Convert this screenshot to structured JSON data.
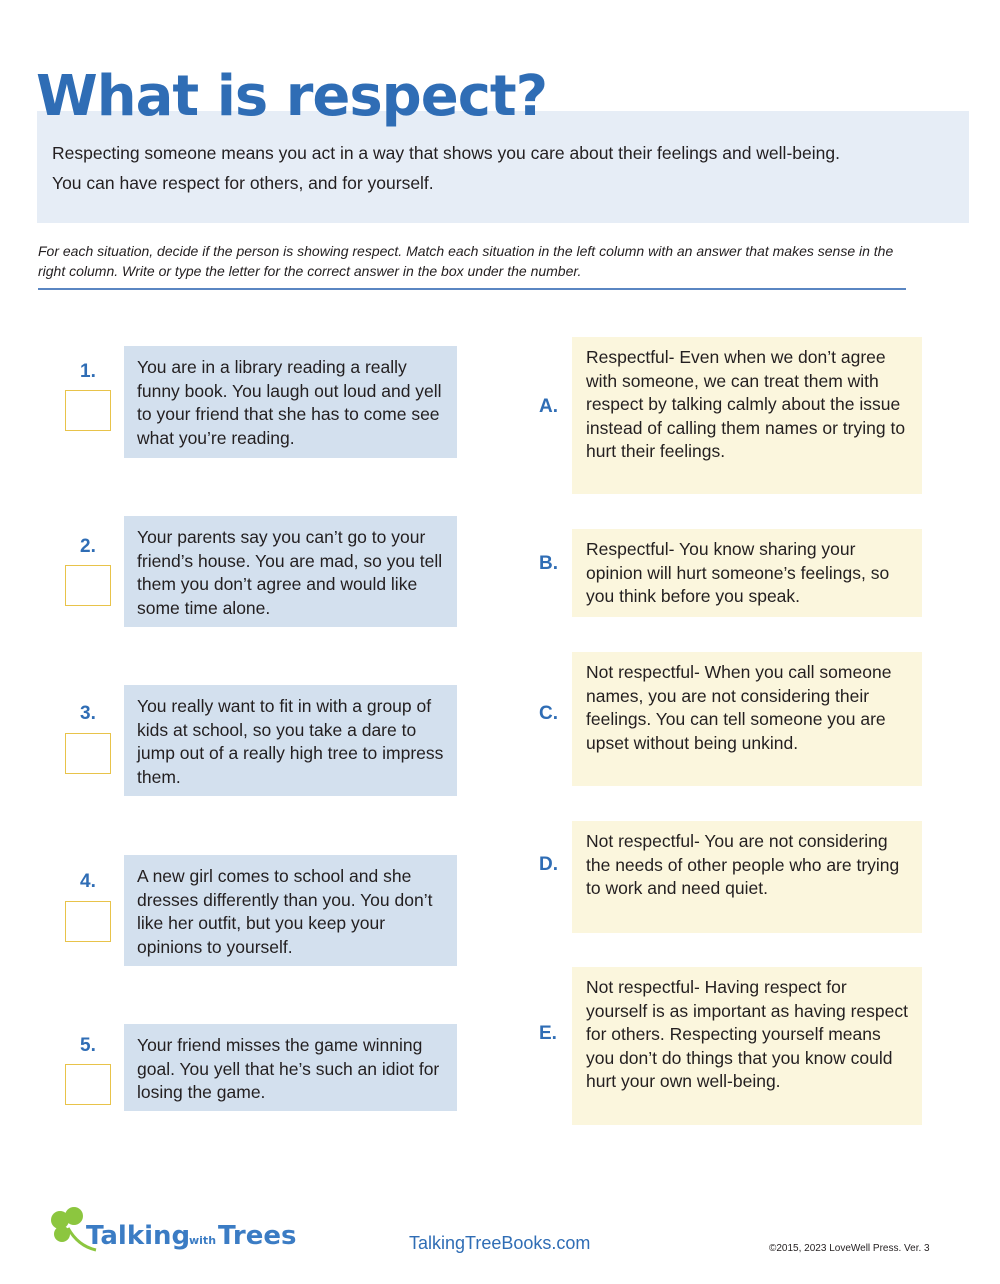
{
  "title": "What is respect?",
  "intro": [
    "Respecting someone means you act in a way that shows you care about their feelings and well-being.",
    "You can have respect for others, and for yourself."
  ],
  "instructions": "For each situation, decide if the person is showing respect. Match each situation in the left column with an answer that makes sense in the right column. Write or type the letter for the correct answer in the box under the number.",
  "situations": [
    {
      "number": "1.",
      "text": "You are in a library reading a really funny book. You laugh out loud and yell to your friend that she has to come see what you’re reading.",
      "answer": ""
    },
    {
      "number": "2.",
      "text": "Your parents say you can’t go to your friend’s house. You are mad, so you tell them you don’t agree and would like some time alone.",
      "answer": ""
    },
    {
      "number": "3.",
      "text": "You really want to fit in with a group of kids at school, so you take a dare to jump out of a really high tree to impress them.",
      "answer": ""
    },
    {
      "number": "4.",
      "text": "A new girl comes to school and she dresses differently than you. You don’t like her outfit, but you keep your opinions to yourself.",
      "answer": ""
    },
    {
      "number": "5.",
      "text": "Your friend misses the game winning goal. You yell that he’s such an idiot for losing the game.",
      "answer": ""
    }
  ],
  "answers": [
    {
      "letter": "A.",
      "text": "Respectful- Even when we don’t agree with someone, we can treat them with respect by talking calmly about the issue instead of calling them names or trying to hurt their feelings."
    },
    {
      "letter": "B.",
      "text": "Respectful- You know sharing your opinion will hurt someone’s feelings, so you think before you speak."
    },
    {
      "letter": "C.",
      "text": "Not respectful- When you call someone names, you are not considering their feelings. You can tell someone you are upset without being unkind."
    },
    {
      "letter": "D.",
      "text": "Not respectful- You are not considering the needs of  other people who are trying to work and need quiet."
    },
    {
      "letter": "E.",
      "text": "Not respectful- Having respect for yourself is as important as having respect for others. Respecting yourself means you don’t do things that you know could hurt your own well-being."
    }
  ],
  "footer": {
    "logo_text": "TalkingwithTrees",
    "website": "TalkingTreeBooks.com",
    "copyright": "©2015, 2023 LoveWell Press.  Ver. 3"
  },
  "colors": {
    "accent": "#2f6db5",
    "logo_green": "#8cc63f",
    "situation_bg": "#d3e0ee",
    "answer_bg": "#fbf6dd",
    "answer_box_border": "#e8c34a"
  }
}
